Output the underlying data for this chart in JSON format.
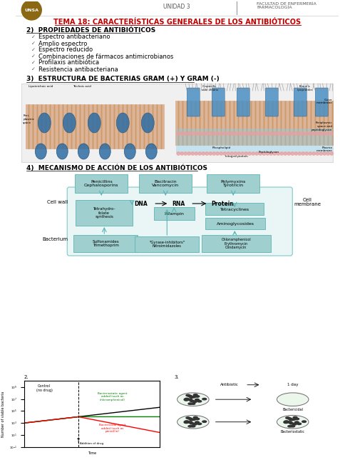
{
  "title_main": "TEMA 18: CARACTERÍSTICAS GENERALES DE LOS ANTIBIÓTICOS",
  "header_center": "UNIDAD 3",
  "header_right": "FACULTAD DE ENFERMERÍA\nFARMACOLOGÍA",
  "section2_title": "2)  PROPIEDADES DE ANTIBIÓTICOS",
  "section2_items": [
    "Espectro antibacteriano",
    "Amplio espectro",
    "Espectro reducido",
    "Combinaciones de fármacos antimicrobianos",
    "Profilaxis antibiótica",
    "Resistencia antibacteriana"
  ],
  "section3_title": "3)  ESTRUCTURA DE BACTERIAS GRAM (+) Y GRAM (-)",
  "section4_title": "4)  MECANISMO DE ACCIÓN DE LOS ANTIBIÓTICOS",
  "bg_color": "#ffffff",
  "title_color": "#c00000",
  "section_color": "#000000",
  "header_line_color": "#999999",
  "text_color": "#000000",
  "mechanism_boxes_top": [
    "Penicillins\nCephalosporins",
    "Bacitracin\nVancomycin",
    "Polymyxins\nTyrotricin"
  ],
  "mechanism_boxes_bottom": [
    "\"Gyrase-inhibitors\"\nNitroimidazoles"
  ],
  "mechanism_labels": [
    "DNA",
    "RNA",
    "Protein"
  ],
  "mechanism_side_labels": [
    "Cell wall",
    "Bacterium",
    "Cell\nmembrane"
  ]
}
